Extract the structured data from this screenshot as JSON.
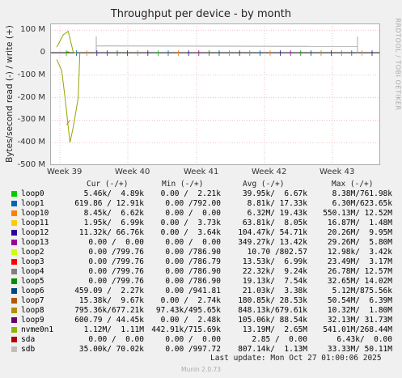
{
  "title": "Throughput per device - by month",
  "ylabel": "Bytes/second read (-) / write (+)",
  "watermark": "RRDTOOL / TOBI OETIKER",
  "chart_data": {
    "type": "line",
    "yticks": [
      "100 M",
      "0",
      "-100 M",
      "-200 M",
      "-300 M",
      "-400 M",
      "-500 M"
    ],
    "ylim": [
      -500000000,
      130000000
    ],
    "xticks": [
      "Week 39",
      "Week 40",
      "Week 41",
      "Week 42",
      "Week 43"
    ],
    "series": [
      {
        "name": "nvme0n1",
        "color": "#94a400",
        "write": [
          [
            0.02,
            25
          ],
          [
            0.04,
            80
          ],
          [
            0.055,
            95
          ],
          [
            0.07,
            2
          ],
          [
            0.08,
            0
          ]
        ],
        "read": [
          [
            0.02,
            -30
          ],
          [
            0.035,
            -80
          ],
          [
            0.045,
            -200
          ],
          [
            0.06,
            -400
          ],
          [
            0.07,
            -330
          ],
          [
            0.085,
            -200
          ],
          [
            0.09,
            0
          ]
        ]
      },
      {
        "name": "loop7",
        "color": "#cc7a00",
        "write": [
          [
            0.05,
            5
          ],
          [
            0.06,
            2
          ]
        ],
        "read": [
          [
            0.05,
            -320
          ],
          [
            0.06,
            -300
          ]
        ]
      },
      {
        "name": "sdb",
        "color": "#aaaaaa",
        "write": [
          [
            0.14,
            30
          ],
          [
            0.93,
            28
          ]
        ],
        "read": []
      }
    ]
  },
  "legend": {
    "headers": {
      "cur": "Cur (-/+)",
      "min": "Min (-/+)",
      "avg": "Avg (-/+)",
      "max": "Max (-/+)"
    },
    "rows": [
      {
        "name": "loop0",
        "color": "#00cc00",
        "cur": "5.46k/  4.89k",
        "min": "0.00 /  2.21k",
        "avg": "39.95k/  6.67k",
        "max": "8.38M/761.98k"
      },
      {
        "name": "loop1",
        "color": "#0066b3",
        "cur": "619.86 / 12.91k",
        "min": "0.00 /792.00",
        "avg": "8.81k/ 17.33k",
        "max": "6.30M/623.65k"
      },
      {
        "name": "loop10",
        "color": "#ff8000",
        "cur": "8.45k/  6.62k",
        "min": "0.00 /  0.00",
        "avg": "6.32M/ 19.43k",
        "max": "550.13M/ 12.52M"
      },
      {
        "name": "loop11",
        "color": "#ffcc00",
        "cur": "1.95k/  6.99k",
        "min": "0.00 /  3.73k",
        "avg": "63.81k/  8.05k",
        "max": "16.87M/  1.48M"
      },
      {
        "name": "loop12",
        "color": "#330099",
        "cur": "11.32k/ 66.76k",
        "min": "0.00 /  3.64k",
        "avg": "104.47k/ 54.71k",
        "max": "20.26M/  9.95M"
      },
      {
        "name": "loop13",
        "color": "#990099",
        "cur": "0.00 /  0.00",
        "min": "0.00 /  0.00",
        "avg": "349.27k/ 13.42k",
        "max": "29.26M/  5.80M"
      },
      {
        "name": "loop2",
        "color": "#ccff00",
        "cur": "0.00 /799.76",
        "min": "0.00 /786.90",
        "avg": "10.70 /802.57",
        "max": "12.98k/  3.42k"
      },
      {
        "name": "loop3",
        "color": "#ff0000",
        "cur": "0.00 /799.76",
        "min": "0.00 /786.79",
        "avg": "13.53k/  6.99k",
        "max": "23.49M/  3.17M"
      },
      {
        "name": "loop4",
        "color": "#808080",
        "cur": "0.00 /799.76",
        "min": "0.00 /786.90",
        "avg": "22.32k/  9.24k",
        "max": "26.78M/ 12.57M"
      },
      {
        "name": "loop5",
        "color": "#008f00",
        "cur": "0.00 /799.76",
        "min": "0.00 /786.90",
        "avg": "19.13k/  7.54k",
        "max": "32.65M/ 14.02M"
      },
      {
        "name": "loop6",
        "color": "#00487d",
        "cur": "459.09 /  2.27k",
        "min": "0.00 /941.81",
        "avg": "21.03k/  3.38k",
        "max": "5.12M/875.56k"
      },
      {
        "name": "loop7",
        "color": "#b35a00",
        "cur": "15.38k/  9.67k",
        "min": "0.00 /  2.74k",
        "avg": "180.85k/ 28.53k",
        "max": "50.54M/  6.39M"
      },
      {
        "name": "loop8",
        "color": "#b38f00",
        "cur": "795.36k/677.21k",
        "min": "97.43k/495.65k",
        "avg": "848.13k/679.61k",
        "max": "10.32M/  1.80M"
      },
      {
        "name": "loop9",
        "color": "#6b006b",
        "cur": "600.79 / 44.45k",
        "min": "0.00 /  2.48k",
        "avg": "105.06k/ 88.54k",
        "max": "32.13M/ 31.73M"
      },
      {
        "name": "nvme0n1",
        "color": "#8fb300",
        "cur": "1.12M/  1.11M",
        "min": "442.91k/715.69k",
        "avg": "13.19M/  2.65M",
        "max": "541.01M/268.44M"
      },
      {
        "name": "sda",
        "color": "#b30000",
        "cur": "0.00 /  0.00",
        "min": "0.00 /  0.00",
        "avg": "2.85 /  0.00",
        "max": "6.43k/  0.00"
      },
      {
        "name": "sdb",
        "color": "#bebebe",
        "cur": "35.00k/ 70.02k",
        "min": "0.00 /997.72",
        "avg": "807.14k/  1.13M",
        "max": "33.33M/ 50.11M"
      }
    ]
  },
  "last_update": "Last update: Mon Oct 27 01:00:06 2025",
  "footer": "Munin 2.0.73"
}
